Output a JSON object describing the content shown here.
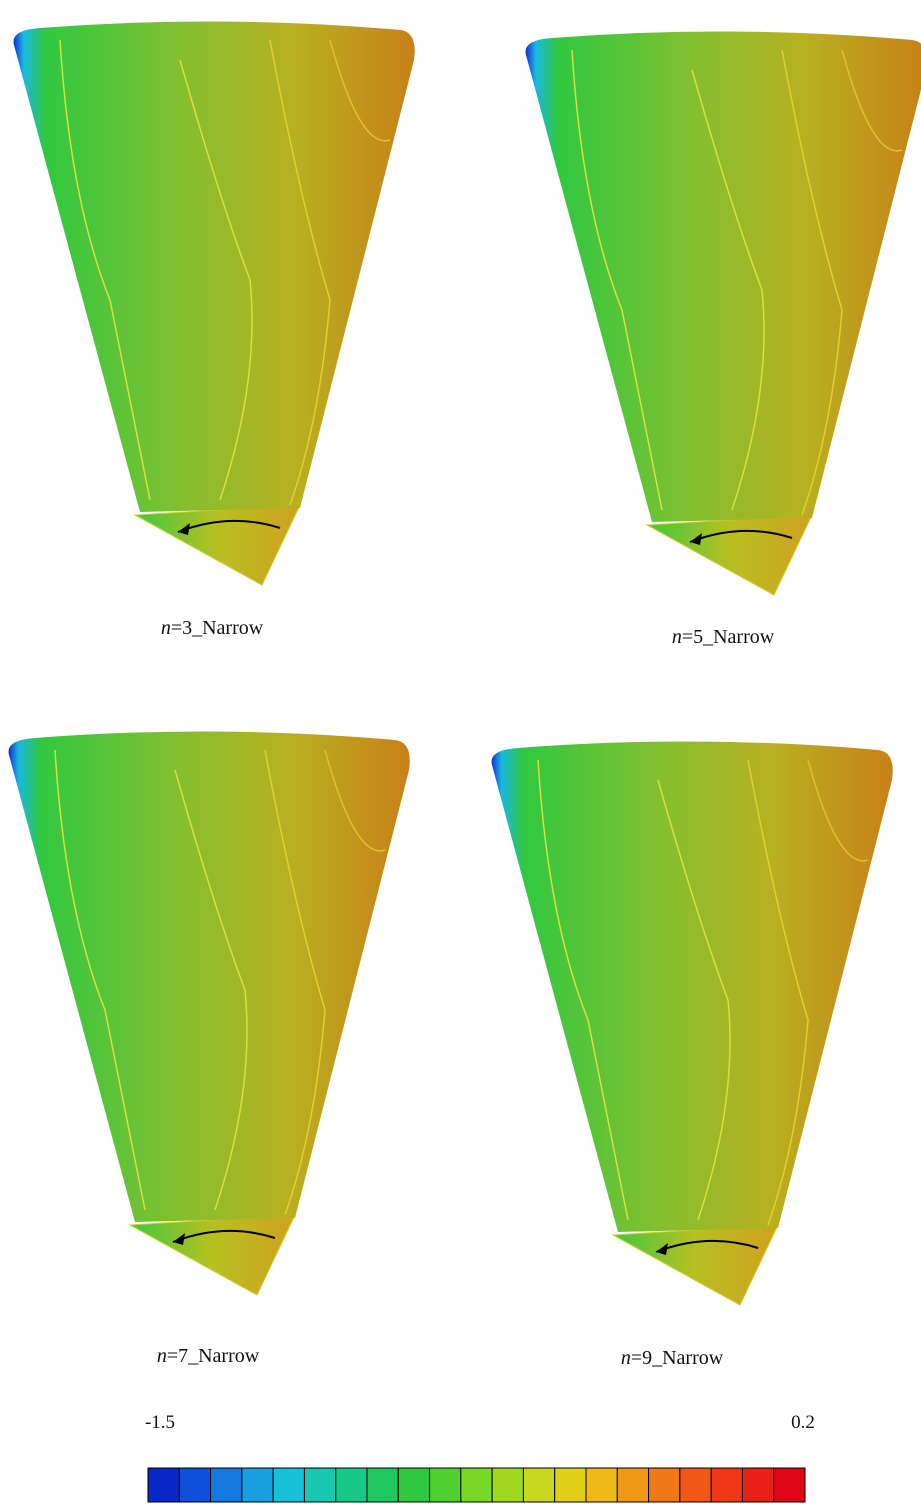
{
  "panels": [
    {
      "variable": "n",
      "suffix": "=3_Narrow"
    },
    {
      "variable": "n",
      "suffix": "=5_Narrow"
    },
    {
      "variable": "n",
      "suffix": "=7_Narrow"
    },
    {
      "variable": "n",
      "suffix": "=9_Narrow"
    }
  ],
  "colorbar": {
    "min": -1.5,
    "max": 0.2,
    "colors": [
      "#0a28c8",
      "#1050d8",
      "#1478e0",
      "#18a0e0",
      "#18c0d8",
      "#18c8b0",
      "#18c888",
      "#20c860",
      "#30c840",
      "#50d030",
      "#78d828",
      "#a0d820",
      "#c8d820",
      "#e0d018",
      "#f0b818",
      "#f09818",
      "#f07818",
      "#f05818",
      "#f03818",
      "#e82018",
      "#e00818"
    ]
  }
}
